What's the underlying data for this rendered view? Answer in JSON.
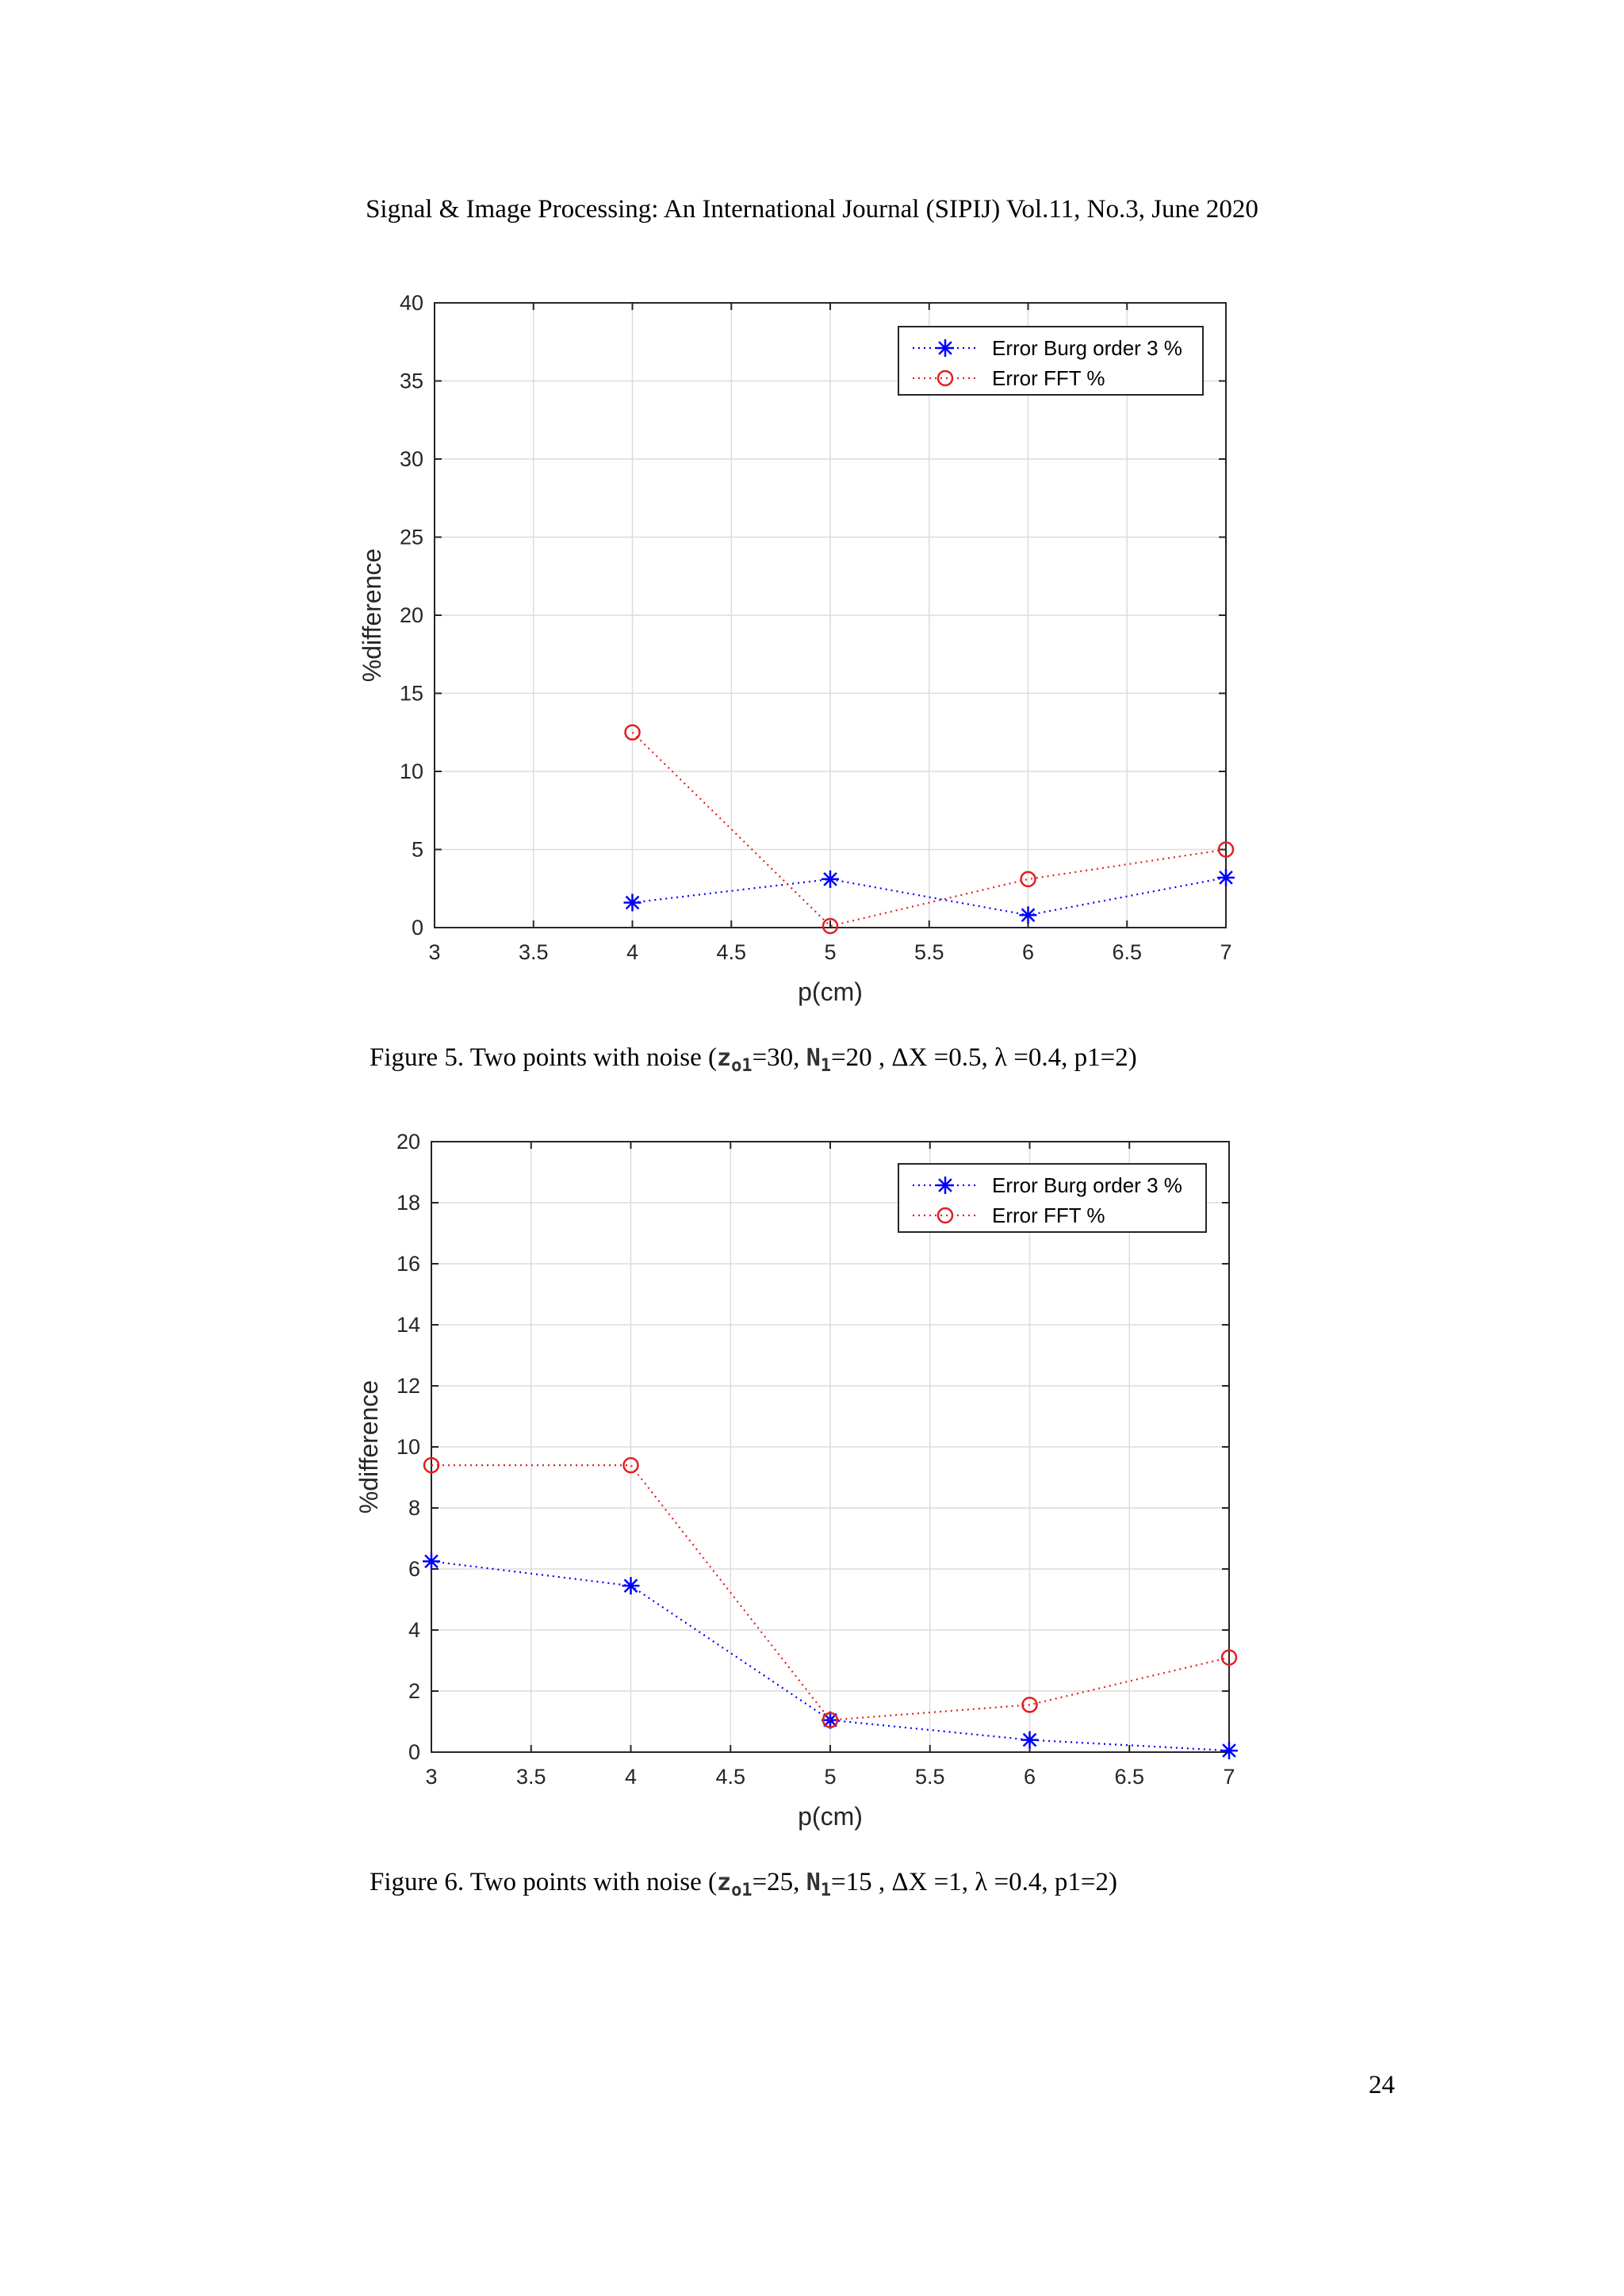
{
  "header": "Signal & Image Processing: An International Journal (SIPIJ) Vol.11, No.3, June 2020",
  "page_number": "24",
  "captions": [
    {
      "prefix": "Figure 5.   Two points with noise (",
      "s1": "z",
      "s1sub": "o1",
      "t1": "=30, ",
      "s2": "N",
      "s2sub": "1",
      "t2": "=20 ,  ΔX =0.5, λ =0.4, p1=2)"
    },
    {
      "prefix": "Figure 6.   Two points with noise (",
      "s1": "z",
      "s1sub": "o1",
      "t1": "=25, ",
      "s2": "N",
      "s2sub": "1",
      "t2": "=15 ,  ΔX =1, λ =0.4, p1=2)"
    }
  ],
  "colors": {
    "burg": "#0000ff",
    "fft": "#e02020",
    "grid": "#dcdcdc",
    "axis": "#262626"
  },
  "chart_data": [
    {
      "type": "line",
      "xlabel": "p(cm)",
      "ylabel": "%difference",
      "xlim": [
        3,
        7
      ],
      "ylim": [
        0,
        40
      ],
      "xticks": [
        3,
        3.5,
        4,
        4.5,
        5,
        5.5,
        6,
        6.5,
        7
      ],
      "yticks": [
        0,
        5,
        10,
        15,
        20,
        25,
        30,
        35,
        40
      ],
      "grid": true,
      "legend_position": "top-right",
      "series": [
        {
          "name": "Error Burg order 3 %",
          "marker": "asterisk",
          "x": [
            4,
            5,
            6,
            7
          ],
          "y": [
            1.6,
            3.1,
            0.8,
            3.2
          ]
        },
        {
          "name": "Error FFT %",
          "marker": "circle",
          "x": [
            4,
            5,
            6,
            7
          ],
          "y": [
            12.5,
            0.1,
            3.1,
            5.0
          ]
        }
      ]
    },
    {
      "type": "line",
      "xlabel": "p(cm)",
      "ylabel": "%difference",
      "xlim": [
        3,
        7
      ],
      "ylim": [
        0,
        20
      ],
      "xticks": [
        3,
        3.5,
        4,
        4.5,
        5,
        5.5,
        6,
        6.5,
        7
      ],
      "yticks": [
        0,
        2,
        4,
        6,
        8,
        10,
        12,
        14,
        16,
        18,
        20
      ],
      "grid": true,
      "legend_position": "top-right",
      "series": [
        {
          "name": "Error Burg order 3 %",
          "marker": "asterisk",
          "x": [
            3,
            4,
            5,
            6,
            7
          ],
          "y": [
            6.25,
            5.45,
            1.05,
            0.4,
            0.05
          ]
        },
        {
          "name": "Error FFT %",
          "marker": "circle",
          "x": [
            3,
            4,
            5,
            6,
            7
          ],
          "y": [
            9.4,
            9.4,
            1.05,
            1.55,
            3.1
          ]
        }
      ]
    }
  ]
}
